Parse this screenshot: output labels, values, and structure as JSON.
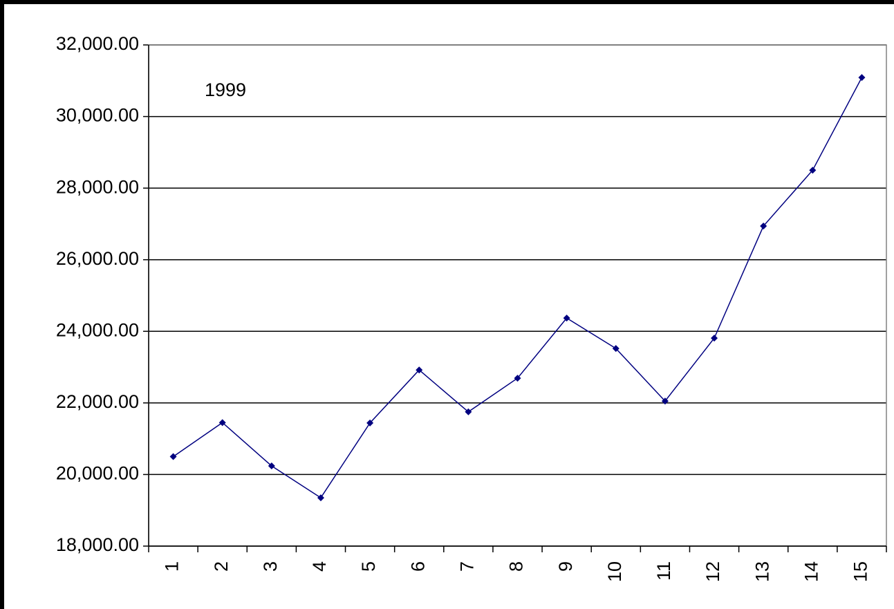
{
  "chart_data": {
    "type": "line",
    "annotation": "1999",
    "categories": [
      "1",
      "2",
      "3",
      "4",
      "5",
      "6",
      "7",
      "8",
      "9",
      "10",
      "11",
      "12",
      "13",
      "14",
      "15"
    ],
    "values": [
      20500,
      21450,
      20240,
      19350,
      21440,
      22920,
      21750,
      22690,
      24370,
      23520,
      22050,
      23810,
      26940,
      28500,
      31090
    ],
    "color": "#000080",
    "ylim": [
      18000,
      32000
    ],
    "yticks": [
      {
        "value": 18000,
        "label": "18,000.00"
      },
      {
        "value": 20000,
        "label": "20,000.00"
      },
      {
        "value": 22000,
        "label": "22,000.00"
      },
      {
        "value": 24000,
        "label": "24,000.00"
      },
      {
        "value": 26000,
        "label": "26,000.00"
      },
      {
        "value": 28000,
        "label": "28,000.00"
      },
      {
        "value": 30000,
        "label": "30,000.00"
      },
      {
        "value": 32000,
        "label": "32,000.00"
      }
    ],
    "grid": true
  }
}
